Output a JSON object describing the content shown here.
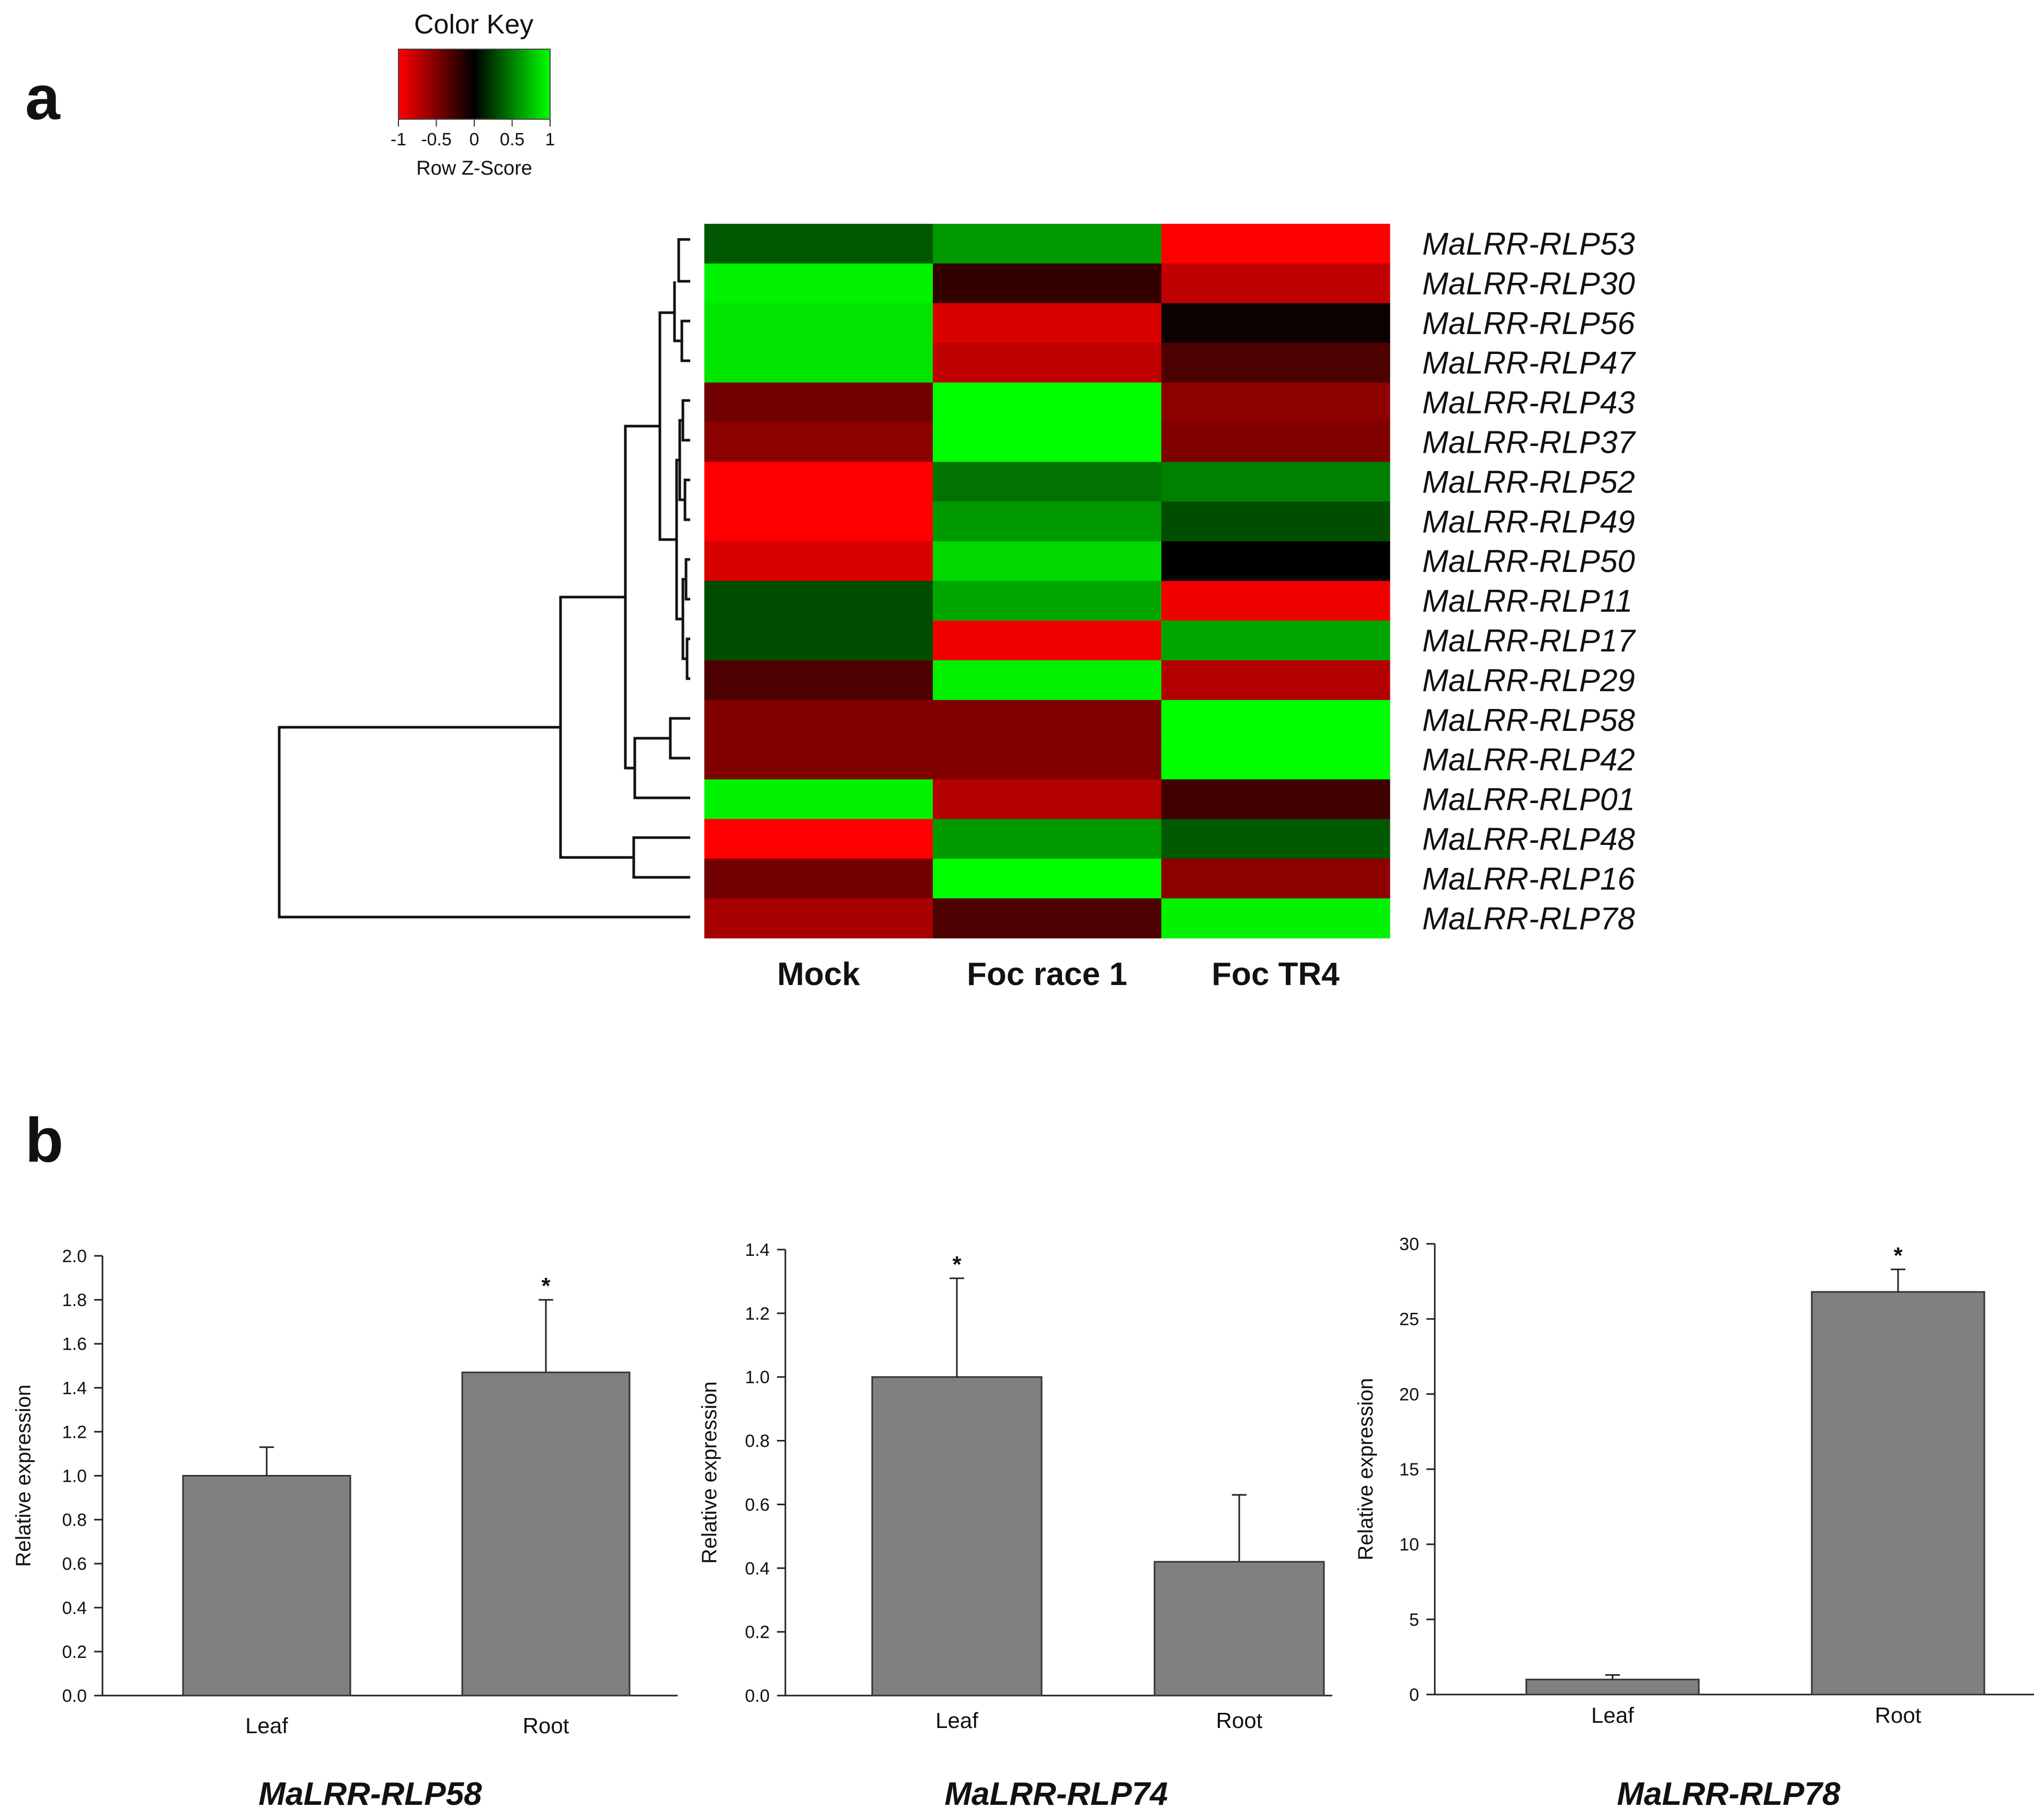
{
  "panels": {
    "a": "a",
    "b": "b"
  },
  "color_key": {
    "title": "Color Key",
    "label": "Row Z-Score",
    "ticks": [
      "-1",
      "-0.5",
      "0",
      "0.5",
      "1"
    ],
    "tick_values": [
      -1,
      -0.5,
      0,
      0.5,
      1
    ],
    "low_color": "#ff0000",
    "mid_color": "#000000",
    "high_color": "#00ff00"
  },
  "chart_data": [
    {
      "type": "heatmap",
      "title": "",
      "columns": [
        "Mock",
        "Foc race 1",
        "Foc TR4"
      ],
      "rows": [
        "MaLRR-RLP53",
        "MaLRR-RLP30",
        "MaLRR-RLP56",
        "MaLRR-RLP47",
        "MaLRR-RLP43",
        "MaLRR-RLP37",
        "MaLRR-RLP52",
        "MaLRR-RLP49",
        "MaLRR-RLP50",
        "MaLRR-RLP11",
        "MaLRR-RLP17",
        "MaLRR-RLP29",
        "MaLRR-RLP58",
        "MaLRR-RLP42",
        "MaLRR-RLP01",
        "MaLRR-RLP48",
        "MaLRR-RLP16",
        "MaLRR-RLP78"
      ],
      "values": [
        [
          0.35,
          0.6,
          -1.0
        ],
        [
          0.95,
          -0.2,
          -0.75
        ],
        [
          0.9,
          -0.85,
          -0.05
        ],
        [
          0.9,
          -0.75,
          -0.3
        ],
        [
          -0.45,
          1.0,
          -0.55
        ],
        [
          -0.55,
          1.0,
          -0.5
        ],
        [
          -1.0,
          0.45,
          0.5
        ],
        [
          -1.0,
          0.6,
          0.3
        ],
        [
          -0.85,
          0.85,
          0.0
        ],
        [
          0.3,
          0.65,
          -0.95
        ],
        [
          0.3,
          -0.95,
          0.65
        ],
        [
          -0.3,
          0.95,
          -0.7
        ],
        [
          -0.5,
          -0.5,
          1.0
        ],
        [
          -0.5,
          -0.5,
          1.0
        ],
        [
          0.95,
          -0.7,
          -0.25
        ],
        [
          -1.0,
          0.6,
          0.35
        ],
        [
          -0.45,
          1.0,
          -0.55
        ],
        [
          -0.65,
          -0.3,
          0.95
        ]
      ],
      "value_range": [
        -1,
        1
      ],
      "dendrogram": "row"
    },
    {
      "type": "bar",
      "title": "MaLRR-RLP58",
      "categories": [
        "Leaf",
        "Root"
      ],
      "values": [
        1.0,
        1.47
      ],
      "errors": [
        0.13,
        0.33
      ],
      "significance": [
        "",
        "*"
      ],
      "xlabel": "",
      "ylabel": "Relative expression",
      "ylim": [
        0,
        2.0
      ],
      "yticks": [
        "0.0",
        "0.2",
        "0.4",
        "0.6",
        "0.8",
        "1.0",
        "1.2",
        "1.4",
        "1.6",
        "1.8",
        "2.0"
      ],
      "ytick_values": [
        0,
        0.2,
        0.4,
        0.6,
        0.8,
        1.0,
        1.2,
        1.4,
        1.6,
        1.8,
        2.0
      ]
    },
    {
      "type": "bar",
      "title": "MaLRR-RLP74",
      "categories": [
        "Leaf",
        "Root"
      ],
      "values": [
        1.0,
        0.42
      ],
      "errors": [
        0.31,
        0.21
      ],
      "significance": [
        "*",
        ""
      ],
      "xlabel": "",
      "ylabel": "Relative expression",
      "ylim": [
        0,
        1.4
      ],
      "yticks": [
        "0.0",
        "0.2",
        "0.4",
        "0.6",
        "0.8",
        "1.0",
        "1.2",
        "1.4"
      ],
      "ytick_values": [
        0,
        0.2,
        0.4,
        0.6,
        0.8,
        1.0,
        1.2,
        1.4
      ]
    },
    {
      "type": "bar",
      "title": "MaLRR-RLP78",
      "categories": [
        "Leaf",
        "Root"
      ],
      "values": [
        1.0,
        26.8
      ],
      "errors": [
        0.3,
        1.5
      ],
      "significance": [
        "",
        "*"
      ],
      "xlabel": "",
      "ylabel": "Relative expression",
      "ylim": [
        0,
        30
      ],
      "yticks": [
        "0",
        "5",
        "10",
        "15",
        "20",
        "25",
        "30"
      ],
      "ytick_values": [
        0,
        5,
        10,
        15,
        20,
        25,
        30
      ]
    }
  ],
  "colors": {
    "bar": "#808080",
    "bar_edge": "#333333",
    "axis": "#222222"
  }
}
